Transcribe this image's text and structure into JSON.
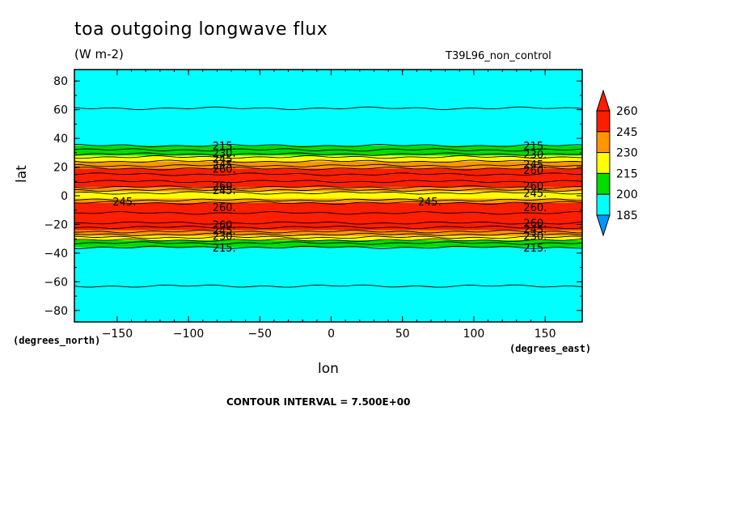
{
  "header": {
    "title": "toa outgoing longwave flux",
    "units": "(W m-2)",
    "run_name": "T39L96_non_control"
  },
  "axes": {
    "x_unit_label": "(degrees_east)",
    "y_unit_label": "(degrees_north)"
  },
  "footer": {
    "contour_interval": "CONTOUR INTERVAL = 7.500E+00"
  },
  "colors": {
    "cyan": "#00ffff",
    "blue": "#0096ff",
    "green": "#00dc00",
    "yellow": "#ffff00",
    "orange": "#ff9600",
    "red": "#ff1e00"
  },
  "chart_data": {
    "type": "heatmap",
    "subtype": "filled-contour",
    "title": "toa outgoing longwave flux",
    "xlabel": "lon",
    "ylabel": "lat",
    "xlim": [
      -180,
      176
    ],
    "ylim": [
      -88,
      88
    ],
    "x_ticks": [
      -150,
      -100,
      -50,
      0,
      50,
      100,
      150
    ],
    "x_tick_labels": [
      "-150",
      "-100",
      "-50",
      "0",
      "50",
      "100",
      "150"
    ],
    "y_ticks": [
      80,
      60,
      40,
      20,
      0,
      -20,
      -40,
      -60,
      -80
    ],
    "y_tick_labels": [
      "80",
      "60",
      "40",
      "20",
      "0",
      "-20",
      "-40",
      "-60",
      "-80"
    ],
    "contour_interval": 7.5,
    "colorbar": {
      "levels": [
        185,
        200,
        215,
        230,
        245,
        260
      ],
      "labels": [
        "260",
        "245",
        "230",
        "215",
        "200",
        "185"
      ],
      "colors": [
        "#00ffff",
        "#00dc00",
        "#ffff00",
        "#ff9600",
        "#ff1e00"
      ],
      "under_color": "#0096ff",
      "over_color": "#ff1e00"
    },
    "bands": [
      {
        "lat_min": -88,
        "lat_max": -36,
        "color": "#00ffff"
      },
      {
        "lat_min": -36,
        "lat_max": -31,
        "color": "#00dc00"
      },
      {
        "lat_min": -31,
        "lat_max": -28,
        "color": "#ffff00"
      },
      {
        "lat_min": -28,
        "lat_max": -24,
        "color": "#ff9600"
      },
      {
        "lat_min": -24,
        "lat_max": -5,
        "color": "#ff1e00"
      },
      {
        "lat_min": -5,
        "lat_max": -2,
        "color": "#ff9600"
      },
      {
        "lat_min": -2,
        "lat_max": 3,
        "color": "#ffff00"
      },
      {
        "lat_min": 3,
        "lat_max": 6,
        "color": "#ff9600"
      },
      {
        "lat_min": 6,
        "lat_max": 19,
        "color": "#ff1e00"
      },
      {
        "lat_min": 19,
        "lat_max": 24,
        "color": "#ff9600"
      },
      {
        "lat_min": 24,
        "lat_max": 28,
        "color": "#ffff00"
      },
      {
        "lat_min": 28,
        "lat_max": 35,
        "color": "#00dc00"
      },
      {
        "lat_min": 35,
        "lat_max": 88,
        "color": "#00ffff"
      }
    ],
    "contour_lines_lat": [
      -63,
      -36,
      -33,
      -31,
      -29,
      -27,
      -25,
      -22,
      -19,
      -12,
      -5,
      -3,
      2,
      4,
      6,
      10,
      15,
      19,
      21,
      24,
      27,
      29,
      32,
      35,
      61
    ],
    "contour_labels": [
      {
        "text": "215.",
        "lon": -75,
        "lat": 35
      },
      {
        "text": "230.",
        "lon": -75,
        "lat": 30
      },
      {
        "text": "245.",
        "lon": -75,
        "lat": 26
      },
      {
        "text": "245.",
        "lon": -75,
        "lat": 22
      },
      {
        "text": "260.",
        "lon": -75,
        "lat": 19
      },
      {
        "text": "260.",
        "lon": -75,
        "lat": 7
      },
      {
        "text": "245.",
        "lon": -75,
        "lat": 4
      },
      {
        "text": "245.",
        "lon": -145,
        "lat": -4
      },
      {
        "text": "260.",
        "lon": -75,
        "lat": -8
      },
      {
        "text": "260.",
        "lon": -75,
        "lat": -20
      },
      {
        "text": "245.",
        "lon": -75,
        "lat": -24
      },
      {
        "text": "230.",
        "lon": -75,
        "lat": -28
      },
      {
        "text": "215.",
        "lon": -75,
        "lat": -36
      },
      {
        "text": "215.",
        "lon": 143,
        "lat": 35
      },
      {
        "text": "230.",
        "lon": 143,
        "lat": 29
      },
      {
        "text": "245.",
        "lon": 143,
        "lat": 22
      },
      {
        "text": "260.",
        "lon": 143,
        "lat": 18
      },
      {
        "text": "260.",
        "lon": 143,
        "lat": 7
      },
      {
        "text": "245.",
        "lon": 143,
        "lat": 2
      },
      {
        "text": "245.",
        "lon": 69,
        "lat": -4
      },
      {
        "text": "260.",
        "lon": 143,
        "lat": -8
      },
      {
        "text": "260.",
        "lon": 143,
        "lat": -19
      },
      {
        "text": "245.",
        "lon": 143,
        "lat": -23
      },
      {
        "text": "230.",
        "lon": 143,
        "lat": -28
      },
      {
        "text": "215.",
        "lon": 143,
        "lat": -36
      }
    ],
    "annotations": [
      "CONTOUR INTERVAL = 7.500E+00"
    ]
  }
}
